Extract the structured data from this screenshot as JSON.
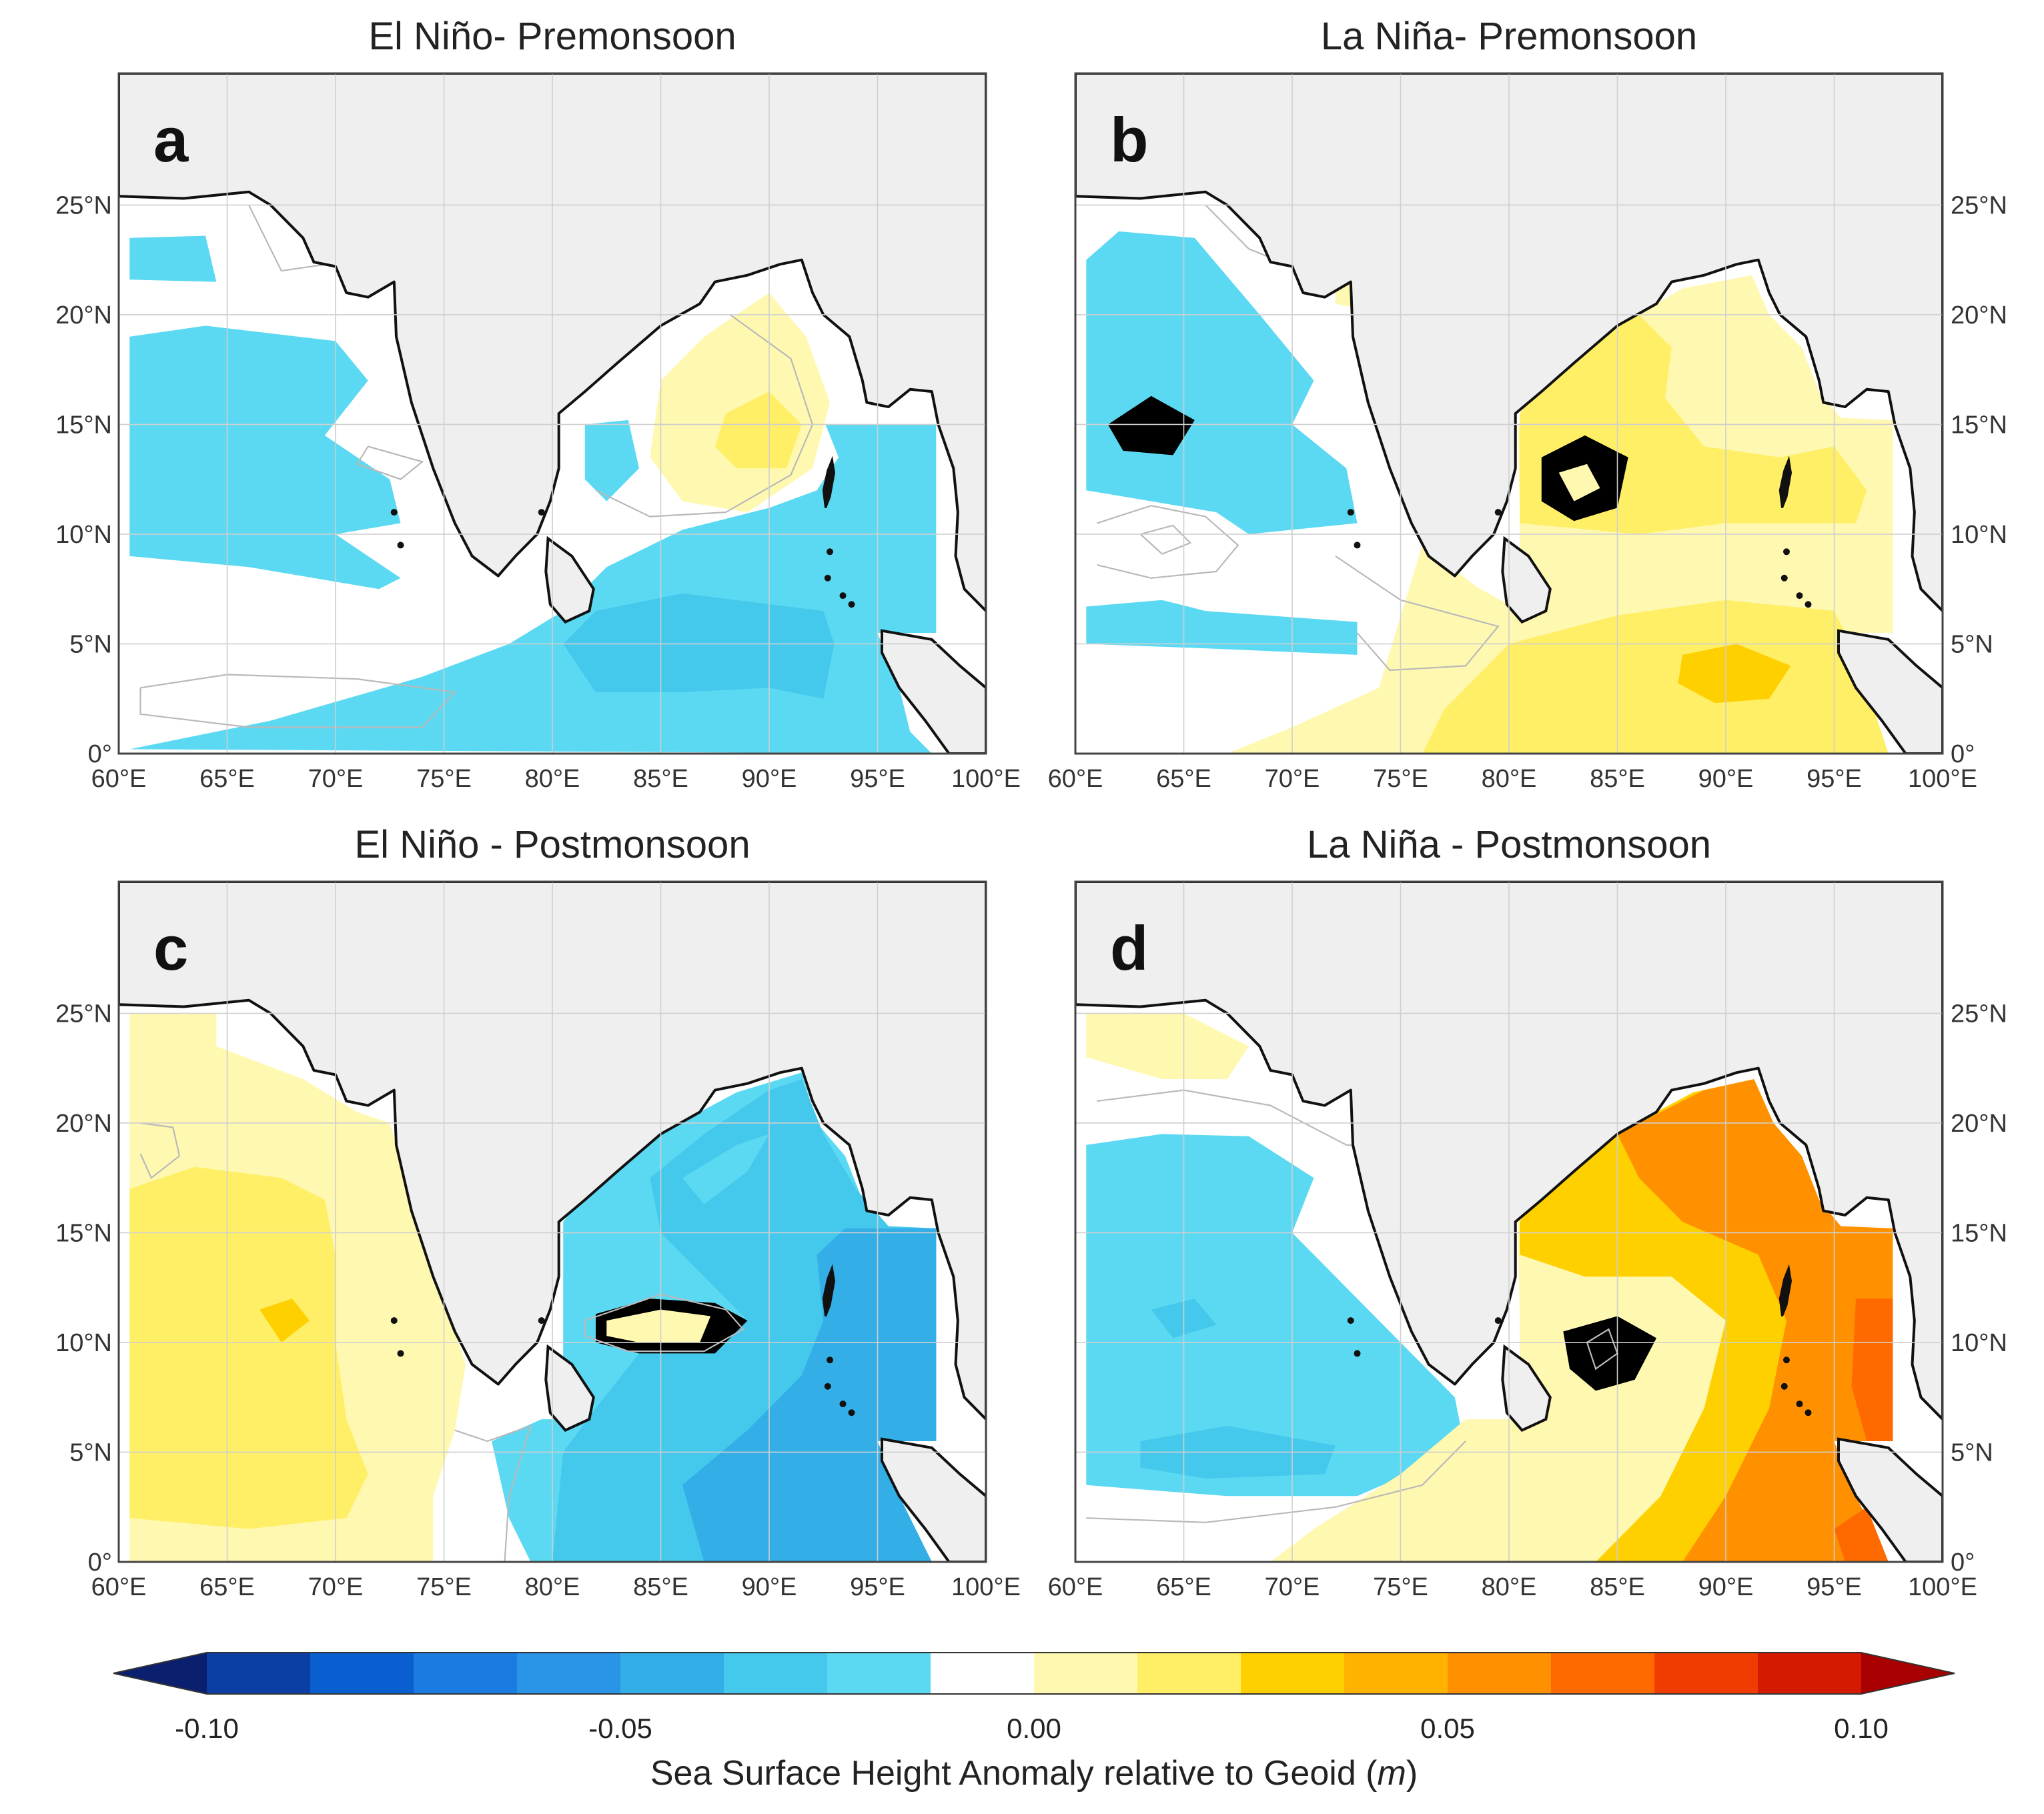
{
  "panels": [
    {
      "letter": "a",
      "title": "El Niño- Premonsoon",
      "scenario": "elnino-pre"
    },
    {
      "letter": "b",
      "title": "La Niña- Premonsoon",
      "scenario": "lanina-pre"
    },
    {
      "letter": "c",
      "title": "El Niño - Postmonsoon",
      "scenario": "elnino-post"
    },
    {
      "letter": "d",
      "title": "La Niña - Postmonsoon",
      "scenario": "lanina-post"
    }
  ],
  "axes": {
    "lon_ticks": [
      "60°E",
      "65°E",
      "70°E",
      "75°E",
      "80°E",
      "85°E",
      "90°E",
      "95°E",
      "100°E"
    ],
    "lat_ticks": [
      "0°",
      "5°N",
      "10°N",
      "15°N",
      "20°N",
      "25°N"
    ],
    "lon_range": [
      60,
      100
    ],
    "lat_range": [
      0,
      31
    ]
  },
  "colorbar": {
    "tick_labels": [
      "-0.10",
      "-0.05",
      "0.00",
      "0.05",
      "0.10"
    ],
    "range": [
      -0.1,
      0.1
    ],
    "label_text": "Sea Surface Height Anomaly relative to Geoid (",
    "label_unit": "m",
    "label_close": ")",
    "colors": [
      "#0a1f6e",
      "#0b3fa4",
      "#0a5fd0",
      "#1a7be0",
      "#2a94e6",
      "#33aee6",
      "#44c8ec",
      "#5cd9f2",
      "#ffffff",
      "#fff8b0",
      "#ffef66",
      "#ffd000",
      "#ffb300",
      "#ff9000",
      "#ff6a00",
      "#f03c00",
      "#d41a00",
      "#a80000"
    ]
  },
  "colors": {
    "land": "#efefef",
    "ocean": "#ffffff",
    "grid": "#cfcfcf",
    "coast": "#111111"
  }
}
